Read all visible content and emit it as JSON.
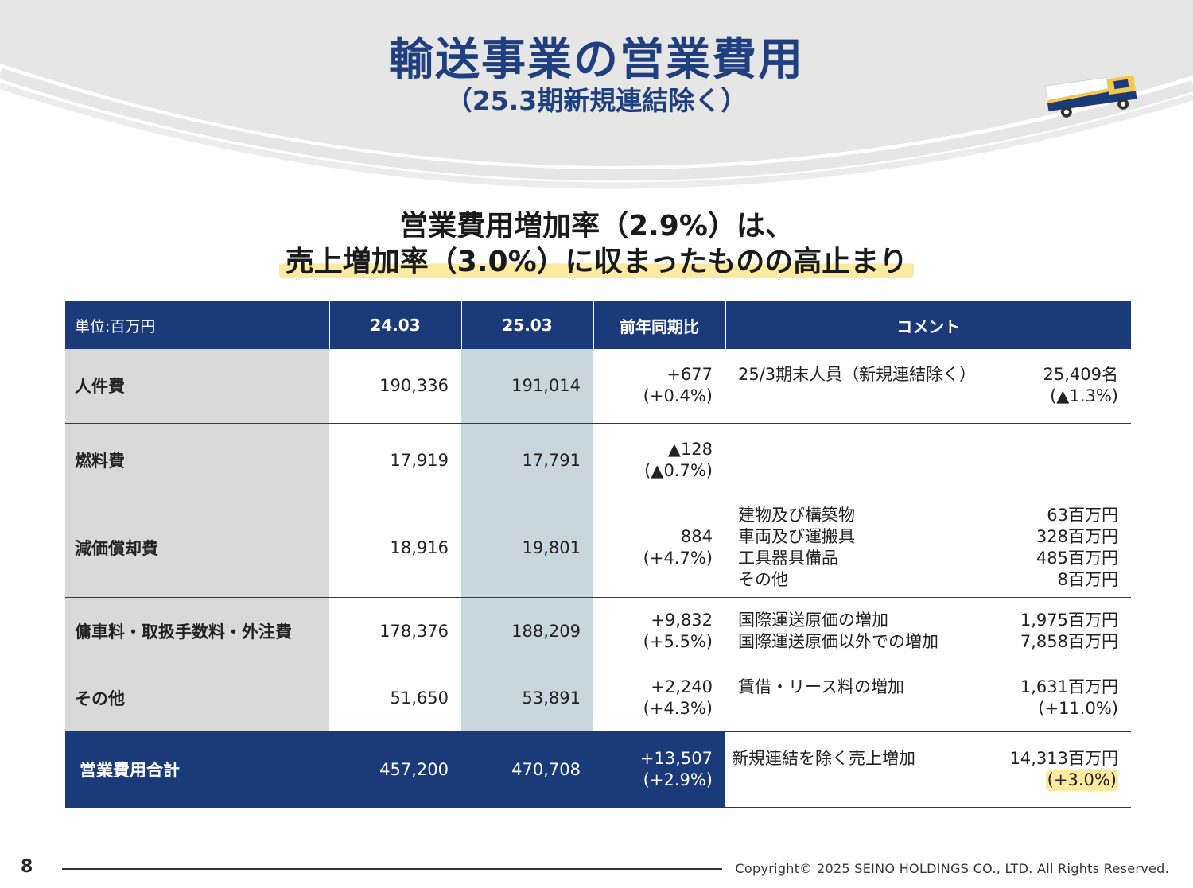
{
  "header": {
    "title": "輸送事業の営業費用",
    "subtitle": "（25.3期新規連結除く）"
  },
  "headline": {
    "line1": "営業費用増加率（2.9%）は、",
    "line2": "売上増加率（3.0%）に収まったものの高止まり"
  },
  "table": {
    "columns": [
      "単位:百万円",
      "24.03",
      "25.03",
      "前年同期比",
      "コメント"
    ],
    "rows": [
      {
        "label": "人件費",
        "v2403": "190,336",
        "v2503": "191,014",
        "yoy": [
          "+677",
          "(+0.4%)"
        ],
        "comments": [
          {
            "text": "25/3期末人員（新規連結除く）",
            "value": "25,409名"
          },
          {
            "text": "",
            "value": "(▲1.3%)"
          }
        ]
      },
      {
        "label": "燃料費",
        "v2403": "17,919",
        "v2503": "17,791",
        "yoy": [
          "▲128",
          "(▲0.7%)"
        ],
        "comments": []
      },
      {
        "label": "減価償却費",
        "v2403": "18,916",
        "v2503": "19,801",
        "yoy": [
          "884",
          "(+4.7%)"
        ],
        "comments": [
          {
            "text": "建物及び構築物",
            "value": "63百万円"
          },
          {
            "text": "車両及び運搬具",
            "value": "328百万円"
          },
          {
            "text": "工具器具備品",
            "value": "485百万円"
          },
          {
            "text": "その他",
            "value": "8百万円"
          }
        ]
      },
      {
        "label": "傭車料・取扱手数料・外注費",
        "v2403": "178,376",
        "v2503": "188,209",
        "yoy": [
          "+9,832",
          "(+5.5%)"
        ],
        "comments": [
          {
            "text": "国際運送原価の増加",
            "value": "1,975百万円"
          },
          {
            "text": "国際運送原価以外での増加",
            "value": "7,858百万円"
          }
        ]
      },
      {
        "label": "その他",
        "v2403": "51,650",
        "v2503": "53,891",
        "yoy": [
          "+2,240",
          "(+4.3%)"
        ],
        "comments": [
          {
            "text": "賃借・リース料の増加",
            "value": "1,631百万円"
          },
          {
            "text": "",
            "value": "(+11.0%)"
          }
        ]
      }
    ],
    "total": {
      "label": "営業費用合計",
      "v2403": "457,200",
      "v2503": "470,708",
      "yoy": [
        "+13,507",
        "(+2.9%)"
      ],
      "comment_text": "新規連結を除く売上増加",
      "comment_value": "14,313百万円",
      "comment_pct": "(+3.0%)"
    }
  },
  "footer": {
    "page_number": "8",
    "copyright": "Copyright© 2025  SEINO HOLDINGS CO., LTD.  All  Rights Reserved."
  },
  "colors": {
    "navy": "#1a3a7a",
    "title_blue": "#1f3f7f",
    "label_gray": "#d9d9d9",
    "highlight_2503": "#c8d6dd",
    "yellow_highlight": "#fbeaa0"
  },
  "icons": [
    "truck-icon"
  ]
}
